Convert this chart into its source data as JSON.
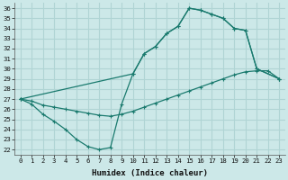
{
  "xlabel": "Humidex (Indice chaleur)",
  "xlim": [
    -0.5,
    23.5
  ],
  "ylim": [
    21.5,
    36.5
  ],
  "xticks": [
    0,
    1,
    2,
    3,
    4,
    5,
    6,
    7,
    8,
    9,
    10,
    11,
    12,
    13,
    14,
    15,
    16,
    17,
    18,
    19,
    20,
    21,
    22,
    23
  ],
  "yticks": [
    22,
    23,
    24,
    25,
    26,
    27,
    28,
    29,
    30,
    31,
    32,
    33,
    34,
    35,
    36
  ],
  "bg_color": "#cce8e8",
  "grid_color": "#b0d4d4",
  "line_color": "#1a7a6e",
  "line1_x": [
    0,
    1,
    2,
    3,
    4,
    5,
    6,
    7,
    8,
    9,
    10,
    11,
    12,
    13,
    14,
    15,
    16,
    17,
    18,
    19,
    20,
    21,
    22,
    23
  ],
  "line1_y": [
    27.0,
    26.8,
    26.4,
    26.2,
    26.0,
    25.8,
    25.6,
    25.4,
    25.3,
    25.5,
    25.8,
    26.2,
    26.6,
    27.0,
    27.4,
    27.8,
    28.2,
    28.6,
    29.0,
    29.4,
    29.7,
    29.8,
    29.8,
    29.0
  ],
  "line2_x": [
    0,
    10,
    11,
    12,
    13,
    14,
    15,
    16,
    17,
    18,
    19,
    20,
    21,
    23
  ],
  "line2_y": [
    27.0,
    29.5,
    31.5,
    32.2,
    33.5,
    34.2,
    36.0,
    35.8,
    35.4,
    35.0,
    34.0,
    33.8,
    30.0,
    29.0
  ],
  "line3_x": [
    0,
    1,
    2,
    3,
    4,
    5,
    6,
    7,
    8,
    9,
    10,
    11,
    12,
    13,
    14,
    15,
    16,
    17,
    18,
    19,
    20,
    21,
    23
  ],
  "line3_y": [
    27.0,
    26.5,
    25.5,
    24.8,
    24.0,
    23.0,
    22.3,
    22.0,
    22.2,
    26.5,
    29.5,
    31.5,
    32.2,
    33.5,
    34.2,
    36.0,
    35.8,
    35.4,
    35.0,
    34.0,
    33.8,
    30.0,
    29.0
  ]
}
